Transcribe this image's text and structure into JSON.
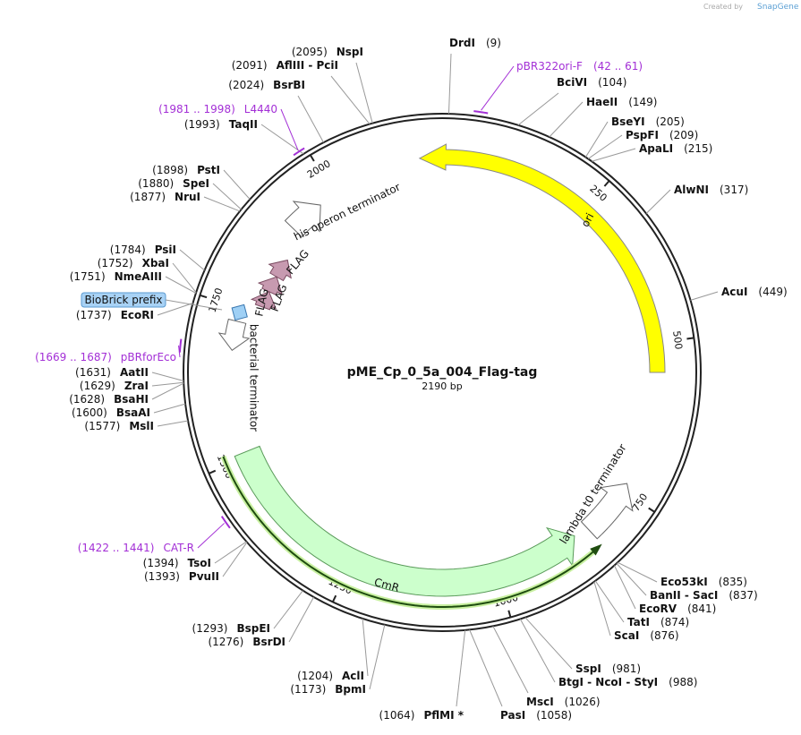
{
  "branding": {
    "prefix": "Created by",
    "name": "SnapGene"
  },
  "plasmid": {
    "name": "pME_Cp_0_5a_004_Flag-tag",
    "length": 2190,
    "length_label": "2190 bp"
  },
  "ruler": [
    250,
    500,
    750,
    1000,
    1250,
    1500,
    1750,
    2000
  ],
  "enzymes": [
    {
      "name": "DrdI",
      "position": 9,
      "label": "(9)"
    },
    {
      "name": "BciVI",
      "position": 104,
      "label": "(104)"
    },
    {
      "name": "HaeII",
      "position": 149,
      "label": "(149)"
    },
    {
      "name": "BseYI",
      "position": 205,
      "label": "(205)"
    },
    {
      "name": "PspFI",
      "position": 209,
      "label": "(209)"
    },
    {
      "name": "ApaLI",
      "position": 215,
      "label": "(215)"
    },
    {
      "name": "AlwNI",
      "position": 317,
      "label": "(317)"
    },
    {
      "name": "AcuI",
      "position": 449,
      "label": "(449)"
    },
    {
      "name": "Eco53kI",
      "position": 835,
      "label": "(835)"
    },
    {
      "name": "BanII  -  SacI",
      "position": 837,
      "label": "(837)"
    },
    {
      "name": "EcoRV",
      "position": 841,
      "label": "(841)"
    },
    {
      "name": "TatI",
      "position": 874,
      "label": "(874)"
    },
    {
      "name": "ScaI",
      "position": 876,
      "label": "(876)"
    },
    {
      "name": "SspI",
      "position": 981,
      "label": "(981)"
    },
    {
      "name": "BtgI  -  NcoI  -  StyI",
      "position": 988,
      "label": "(988)"
    },
    {
      "name": "MscI",
      "position": 1026,
      "label": "(1026)"
    },
    {
      "name": "PasI",
      "position": 1058,
      "label": "(1058)"
    },
    {
      "name": "PflMI *",
      "position": 1064,
      "label": "(1064)"
    },
    {
      "name": "BpmI",
      "position": 1173,
      "label": "(1173)"
    },
    {
      "name": "AclI",
      "position": 1204,
      "label": "(1204)"
    },
    {
      "name": "BsrDI",
      "position": 1276,
      "label": "(1276)"
    },
    {
      "name": "BspEI",
      "position": 1293,
      "label": "(1293)"
    },
    {
      "name": "PvuII",
      "position": 1393,
      "label": "(1393)"
    },
    {
      "name": "TsoI",
      "position": 1394,
      "label": "(1394)"
    },
    {
      "name": "MslI",
      "position": 1577,
      "label": "(1577)"
    },
    {
      "name": "BsaAI",
      "position": 1600,
      "label": "(1600)"
    },
    {
      "name": "BsaHI",
      "position": 1628,
      "label": "(1628)"
    },
    {
      "name": "ZraI",
      "position": 1629,
      "label": "(1629)"
    },
    {
      "name": "AatII",
      "position": 1631,
      "label": "(1631)"
    },
    {
      "name": "EcoRI",
      "position": 1737,
      "label": "(1737)"
    },
    {
      "name": "NmeAIII",
      "position": 1751,
      "label": "(1751)"
    },
    {
      "name": "XbaI",
      "position": 1752,
      "label": "(1752)"
    },
    {
      "name": "PsiI",
      "position": 1784,
      "label": "(1784)"
    },
    {
      "name": "NruI",
      "position": 1877,
      "label": "(1877)"
    },
    {
      "name": "SpeI",
      "position": 1880,
      "label": "(1880)"
    },
    {
      "name": "PstI",
      "position": 1898,
      "label": "(1898)"
    },
    {
      "name": "TaqII",
      "position": 1993,
      "label": "(1993)"
    },
    {
      "name": "BsrBI",
      "position": 2024,
      "label": "(2024)"
    },
    {
      "name": "AflIII  -  PciI",
      "position": 2091,
      "label": "(2091)"
    },
    {
      "name": "NspI",
      "position": 2095,
      "label": "(2095)"
    }
  ],
  "primers": [
    {
      "name": "pBR322ori-F",
      "start": 42,
      "end": 61,
      "range": "(42 .. 61)"
    },
    {
      "name": "CAT-R",
      "start": 1422,
      "end": 1441,
      "range": "(1422 .. 1441)"
    },
    {
      "name": "pBRforEco",
      "start": 1669,
      "end": 1687,
      "range": "(1669 .. 1687)"
    },
    {
      "name": "L4440",
      "start": 1981,
      "end": 1998,
      "range": "(1981 .. 1998)"
    }
  ],
  "features": [
    {
      "name": "ori"
    },
    {
      "name": "CmR"
    },
    {
      "name": "lambda t0 terminator"
    },
    {
      "name": "his operon terminator"
    },
    {
      "name": "FLAG"
    },
    {
      "name": "FLAG"
    },
    {
      "name": "FLAG"
    },
    {
      "name": "bacterial terminator"
    },
    {
      "name": "BioBrick prefix"
    }
  ]
}
